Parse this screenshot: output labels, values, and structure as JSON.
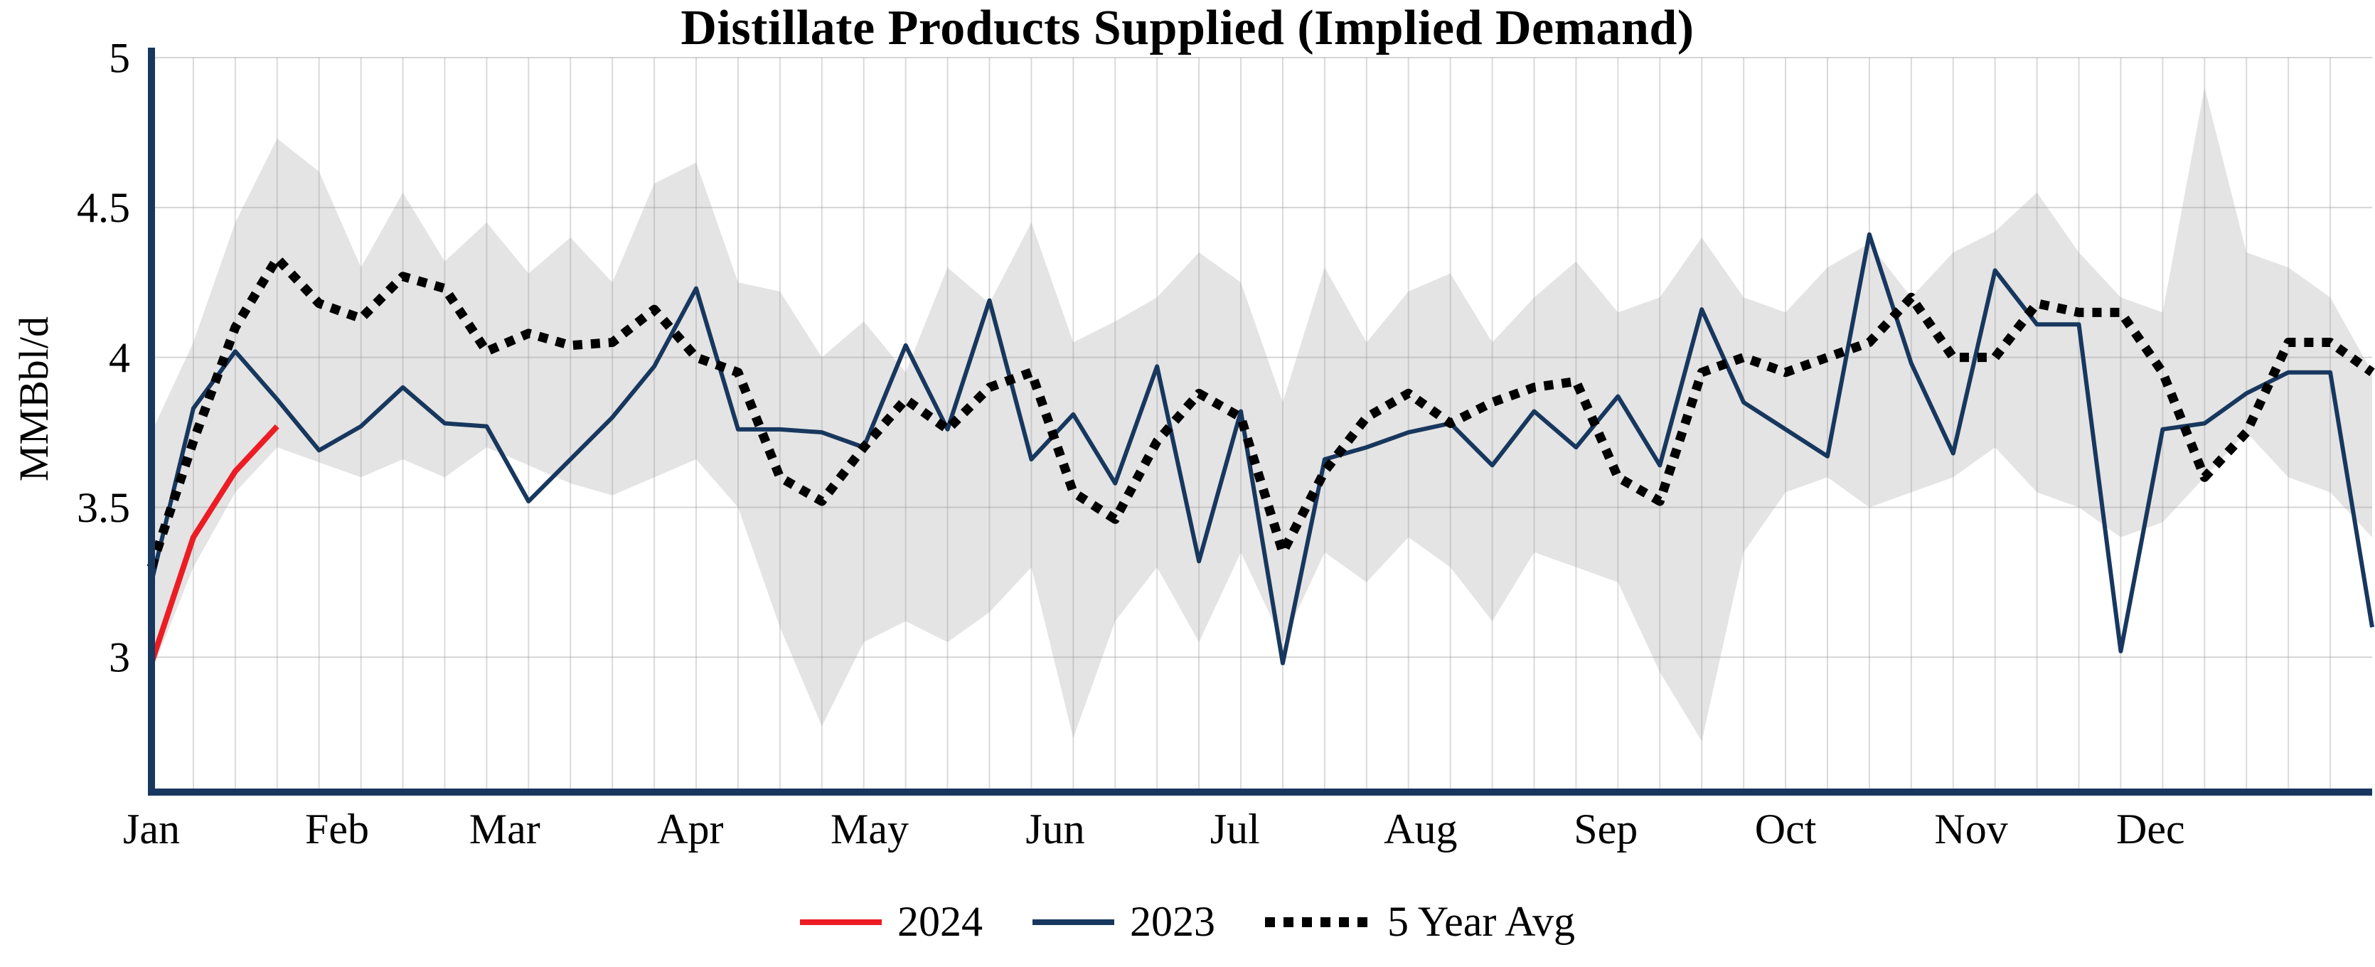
{
  "title": "Distillate Products Supplied (Implied Demand)",
  "ylabel": "MMBbl/d",
  "legend": {
    "items": [
      {
        "label": "2024",
        "color": "#ed1c24",
        "style": "solid"
      },
      {
        "label": "2023",
        "color": "#17375e",
        "style": "solid"
      },
      {
        "label": "5 Year Avg",
        "color": "#000000",
        "style": "dotted"
      }
    ]
  },
  "chart_data": {
    "type": "line",
    "title": "Distillate Products Supplied (Implied Demand)",
    "xlabel": "",
    "ylabel": "MMBbl/d",
    "x_unit": "week_of_year",
    "xlim": [
      0,
      53
    ],
    "ylim": [
      2.55,
      5.0
    ],
    "yticks": [
      3,
      3.5,
      4,
      4.5,
      5
    ],
    "ytick_labels": [
      "3",
      "3.5",
      "4",
      "4.5",
      "5"
    ],
    "grid": true,
    "grid_color": "#cccccc",
    "axis_color": "#17375e",
    "background": "#ffffff",
    "legend_position": "bottom",
    "xticks": {
      "weeks": [
        0,
        4.43,
        8.43,
        12.86,
        17.14,
        21.57,
        25.86,
        30.29,
        34.71,
        39.0,
        43.43,
        47.71
      ],
      "labels": [
        "Jan",
        "Feb",
        "Mar",
        "Apr",
        "May",
        "Jun",
        "Jul",
        "Aug",
        "Sep",
        "Oct",
        "Nov",
        "Dec"
      ]
    },
    "band": {
      "name": "five-year-range",
      "color": "#e4e4e4",
      "upper": [
        3.75,
        4.05,
        4.45,
        4.73,
        4.62,
        4.3,
        4.55,
        4.32,
        4.45,
        4.28,
        4.4,
        4.25,
        4.58,
        4.65,
        4.25,
        4.22,
        4.0,
        4.12,
        3.95,
        4.3,
        4.18,
        4.45,
        4.05,
        4.12,
        4.2,
        4.35,
        4.25,
        3.85,
        4.3,
        4.05,
        4.22,
        4.28,
        4.05,
        4.2,
        4.32,
        4.15,
        4.2,
        4.4,
        4.2,
        4.15,
        4.3,
        4.38,
        4.2,
        4.35,
        4.42,
        4.55,
        4.35,
        4.2,
        4.15,
        4.9,
        4.35,
        4.3,
        4.2,
        3.95
      ],
      "lower": [
        2.95,
        3.3,
        3.55,
        3.7,
        3.65,
        3.6,
        3.66,
        3.6,
        3.7,
        3.64,
        3.58,
        3.54,
        3.6,
        3.66,
        3.5,
        3.1,
        2.77,
        3.05,
        3.12,
        3.05,
        3.15,
        3.3,
        2.73,
        3.12,
        3.3,
        3.05,
        3.35,
        3.05,
        3.35,
        3.25,
        3.4,
        3.3,
        3.12,
        3.35,
        3.3,
        3.25,
        2.95,
        2.72,
        3.35,
        3.55,
        3.6,
        3.5,
        3.55,
        3.6,
        3.7,
        3.55,
        3.5,
        3.4,
        3.45,
        3.6,
        3.75,
        3.6,
        3.55,
        3.4
      ]
    },
    "series": [
      {
        "name": "2024",
        "color": "#ed1c24",
        "style": "solid",
        "start_week": 0,
        "values": [
          2.98,
          3.4,
          3.62,
          3.77
        ]
      },
      {
        "name": "2023",
        "color": "#17375e",
        "style": "solid",
        "start_week": 0,
        "values": [
          3.25,
          3.83,
          4.02,
          3.86,
          3.69,
          3.77,
          3.9,
          3.78,
          3.77,
          3.52,
          3.66,
          3.8,
          3.97,
          4.23,
          3.76,
          3.76,
          3.75,
          3.7,
          4.04,
          3.76,
          4.19,
          3.66,
          3.81,
          3.58,
          3.97,
          3.32,
          3.82,
          2.98,
          3.66,
          3.7,
          3.75,
          3.78,
          3.64,
          3.82,
          3.7,
          3.87,
          3.64,
          4.16,
          3.85,
          3.76,
          3.67,
          4.41,
          3.98,
          3.68,
          4.29,
          4.11,
          4.11,
          3.02,
          3.76,
          3.78,
          3.88,
          3.95,
          3.95,
          3.1
        ]
      },
      {
        "name": "5 Year Avg",
        "color": "#000000",
        "style": "dotted",
        "start_week": 0,
        "values": [
          3.3,
          3.72,
          4.1,
          4.33,
          4.18,
          4.13,
          4.27,
          4.23,
          4.02,
          4.08,
          4.04,
          4.05,
          4.16,
          4.0,
          3.95,
          3.6,
          3.52,
          3.7,
          3.86,
          3.76,
          3.9,
          3.95,
          3.55,
          3.46,
          3.72,
          3.88,
          3.8,
          3.35,
          3.62,
          3.8,
          3.88,
          3.78,
          3.85,
          3.9,
          3.92,
          3.6,
          3.52,
          3.95,
          4.0,
          3.95,
          4.0,
          4.05,
          4.2,
          4.0,
          4.0,
          4.18,
          4.15,
          4.15,
          3.95,
          3.6,
          3.75,
          4.05,
          4.05,
          3.95
        ]
      }
    ]
  }
}
